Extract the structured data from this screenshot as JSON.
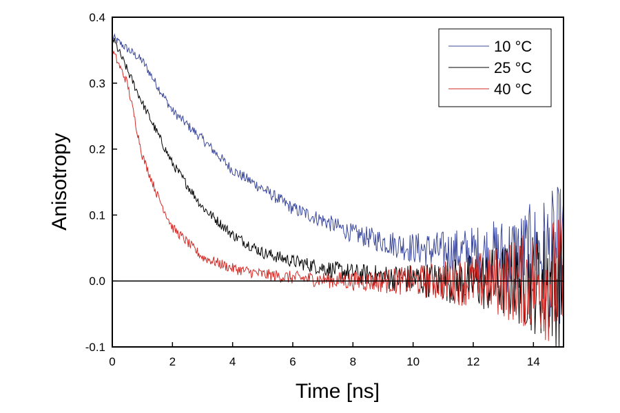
{
  "chart_data": {
    "type": "line",
    "title": "",
    "xlabel": "Time [ns]",
    "ylabel": "Anisotropy",
    "xlim": [
      0,
      15
    ],
    "ylim": [
      -0.1,
      0.4
    ],
    "xticks": [
      "0",
      "2",
      "4",
      "6",
      "8",
      "10",
      "12",
      "14"
    ],
    "yticks": [
      "-0.1",
      "0.0",
      "0.1",
      "0.2",
      "0.3",
      "0.4"
    ],
    "grid": false,
    "zero_line": true,
    "legend_position": "top-right",
    "series": [
      {
        "name": "10 °C",
        "color": "#3a479a",
        "x": [
          0,
          1,
          2,
          3,
          4,
          5,
          6,
          7,
          8,
          9,
          10,
          11,
          12,
          13,
          14,
          15
        ],
        "y": [
          0.37,
          0.334,
          0.258,
          0.215,
          0.168,
          0.14,
          0.11,
          0.092,
          0.072,
          0.06,
          0.05,
          0.045,
          0.042,
          0.04,
          0.04,
          0.04
        ]
      },
      {
        "name": "25 °C",
        "color": "#000000",
        "x": [
          0,
          1,
          2,
          3,
          4,
          5,
          6,
          7,
          8,
          9,
          10,
          11,
          12,
          13,
          14,
          15
        ],
        "y": [
          0.37,
          0.27,
          0.178,
          0.112,
          0.07,
          0.043,
          0.03,
          0.02,
          0.012,
          0.006,
          0.003,
          0.0,
          0.0,
          0.0,
          0.0,
          0.0
        ]
      },
      {
        "name": "40 °C",
        "color": "#d42a25",
        "x": [
          0,
          0.5,
          1,
          1.5,
          2,
          3,
          4,
          5,
          6,
          7,
          8,
          10,
          12,
          15
        ],
        "y": [
          0.35,
          0.3,
          0.19,
          0.13,
          0.081,
          0.036,
          0.019,
          0.01,
          0.005,
          0.002,
          0.0,
          0.0,
          0.0,
          0.0
        ]
      }
    ]
  }
}
